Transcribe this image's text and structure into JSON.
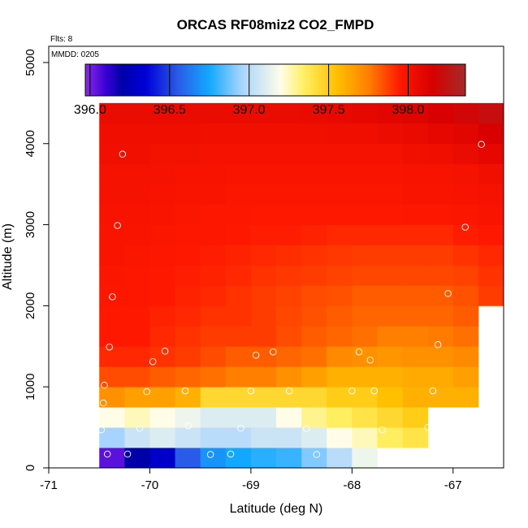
{
  "chart_data": {
    "type": "heatmap",
    "title": "ORCAS RF08miz2 CO2_FMPD",
    "xlabel": "Latitude (deg N)",
    "ylabel": "Altitude (m)",
    "flights_label": "Flts: 8",
    "date_label": "MMDD: 0205",
    "xlim": [
      -71,
      -66.5
    ],
    "ylim": [
      0,
      5200
    ],
    "x_ticks": [
      -71,
      -70,
      -69,
      -68,
      -67
    ],
    "x_tick_labels": [
      "-71",
      "-70",
      "-69",
      "-68",
      "-67"
    ],
    "y_ticks": [
      0,
      1000,
      2000,
      3000,
      4000,
      5000
    ],
    "y_tick_labels": [
      "0",
      "1000",
      "2000",
      "3000",
      "4000",
      "5000"
    ],
    "colorbar": {
      "min": 395.97,
      "max": 398.36,
      "ticks": [
        396.0,
        396.5,
        397.0,
        397.5,
        398.0
      ],
      "tick_labels": [
        "396.0",
        "396.5",
        "397.0",
        "397.5",
        "398.0"
      ],
      "stops": [
        {
          "v": 395.97,
          "c": "#8a2be2"
        },
        {
          "v": 396.1,
          "c": "#3a00d6"
        },
        {
          "v": 396.2,
          "c": "#0000a8"
        },
        {
          "v": 396.35,
          "c": "#0000d8"
        },
        {
          "v": 396.55,
          "c": "#2a5ae8"
        },
        {
          "v": 396.75,
          "c": "#12a8ff"
        },
        {
          "v": 396.95,
          "c": "#a6d4ff"
        },
        {
          "v": 397.2,
          "c": "#fffde8"
        },
        {
          "v": 397.35,
          "c": "#ffee60"
        },
        {
          "v": 397.55,
          "c": "#ffc000"
        },
        {
          "v": 397.75,
          "c": "#ff8000"
        },
        {
          "v": 397.95,
          "c": "#ff1800"
        },
        {
          "v": 398.15,
          "c": "#d80000"
        },
        {
          "v": 398.36,
          "c": "#a52a2a"
        }
      ]
    },
    "grid": {
      "lat_start": -70.5,
      "lat_step": 0.25,
      "alt_start": 0,
      "alt_step": 250,
      "rows": [
        [
          396.05,
          396.2,
          396.3,
          396.55,
          396.7,
          396.75,
          396.78,
          396.8,
          396.9,
          397.0,
          397.15,
          null,
          null,
          null,
          null,
          null,
          null,
          null
        ],
        [
          396.95,
          397.05,
          397.1,
          397.05,
          397.0,
          397.0,
          397.05,
          397.05,
          397.1,
          397.2,
          397.25,
          397.35,
          397.4,
          null,
          null,
          null,
          null,
          null
        ],
        [
          397.2,
          397.25,
          397.2,
          397.15,
          397.1,
          397.1,
          397.1,
          397.2,
          397.3,
          397.35,
          397.4,
          397.45,
          397.5,
          null,
          null,
          null,
          null,
          null
        ],
        [
          397.7,
          397.65,
          397.65,
          397.6,
          397.45,
          397.45,
          397.45,
          397.45,
          397.45,
          397.5,
          397.5,
          397.55,
          397.6,
          397.6,
          397.6,
          null,
          null,
          null
        ],
        [
          397.85,
          397.85,
          397.82,
          397.8,
          397.78,
          397.75,
          397.75,
          397.7,
          397.65,
          397.6,
          397.6,
          397.6,
          397.62,
          397.62,
          397.65,
          null,
          null,
          null
        ],
        [
          397.92,
          397.92,
          397.9,
          397.88,
          397.85,
          397.82,
          397.82,
          397.8,
          397.78,
          397.72,
          397.7,
          397.68,
          397.7,
          397.7,
          397.72,
          null,
          null,
          null
        ],
        [
          397.95,
          397.95,
          397.92,
          397.9,
          397.88,
          397.88,
          397.88,
          397.85,
          397.82,
          397.8,
          397.78,
          397.75,
          397.75,
          397.76,
          397.78,
          null,
          null,
          null
        ],
        [
          397.95,
          397.95,
          397.93,
          397.92,
          397.9,
          397.9,
          397.88,
          397.86,
          397.84,
          397.82,
          397.8,
          397.8,
          397.8,
          397.8,
          397.82,
          null,
          null,
          null
        ],
        [
          397.96,
          397.96,
          397.95,
          397.93,
          397.92,
          397.9,
          397.88,
          397.87,
          397.85,
          397.84,
          397.82,
          397.82,
          397.82,
          397.82,
          397.84,
          397.88,
          null,
          null
        ],
        [
          397.97,
          397.96,
          397.95,
          397.94,
          397.93,
          397.92,
          397.9,
          397.89,
          397.88,
          397.87,
          397.86,
          397.86,
          397.86,
          397.86,
          397.87,
          397.9,
          null,
          null
        ],
        [
          397.98,
          397.97,
          397.96,
          397.95,
          397.94,
          397.93,
          397.92,
          397.91,
          397.9,
          397.89,
          397.88,
          397.88,
          397.88,
          397.88,
          397.9,
          397.92,
          null,
          null
        ],
        [
          397.98,
          397.98,
          397.97,
          397.96,
          397.96,
          397.95,
          397.94,
          397.94,
          397.93,
          397.92,
          397.92,
          397.92,
          397.92,
          397.92,
          397.94,
          397.95,
          null,
          null
        ],
        [
          397.99,
          397.99,
          397.98,
          397.97,
          397.96,
          397.96,
          397.95,
          397.95,
          397.95,
          397.95,
          397.95,
          397.95,
          397.96,
          397.96,
          397.97,
          397.98,
          397.98,
          null
        ],
        [
          398.0,
          398.0,
          397.99,
          397.98,
          397.98,
          397.97,
          397.97,
          397.97,
          397.97,
          397.97,
          397.97,
          397.97,
          397.98,
          397.98,
          397.99,
          398.0,
          398.0,
          null
        ],
        [
          398.0,
          398.0,
          398.0,
          397.99,
          397.99,
          397.98,
          397.98,
          397.98,
          397.98,
          397.98,
          397.98,
          397.98,
          397.99,
          397.99,
          398.0,
          398.02,
          398.04,
          null
        ],
        [
          398.02,
          398.02,
          398.01,
          398.01,
          398.0,
          398.0,
          398.0,
          398.0,
          398.0,
          398.0,
          398.0,
          398.0,
          398.02,
          398.03,
          398.05,
          398.08,
          398.1,
          null
        ],
        [
          398.03,
          398.03,
          398.03,
          398.03,
          398.02,
          398.02,
          398.02,
          398.02,
          398.02,
          398.03,
          398.03,
          398.04,
          398.06,
          398.08,
          398.1,
          398.15,
          398.18,
          null
        ],
        [
          398.05,
          398.05,
          398.05,
          398.05,
          398.05,
          398.05,
          398.05,
          398.05,
          398.06,
          398.07,
          398.08,
          398.1,
          398.12,
          398.15,
          398.18,
          398.22,
          398.25,
          398.34
        ]
      ]
    },
    "points": [
      [
        -70.42,
        170
      ],
      [
        -70.22,
        170
      ],
      [
        -69.4,
        165
      ],
      [
        -69.2,
        170
      ],
      [
        -68.35,
        165
      ],
      [
        -67.5,
        170
      ],
      [
        -70.48,
        470
      ],
      [
        -70.1,
        490
      ],
      [
        -69.62,
        520
      ],
      [
        -69.1,
        490
      ],
      [
        -68.45,
        485
      ],
      [
        -67.7,
        470
      ],
      [
        -67.25,
        500
      ],
      [
        -70.46,
        800
      ],
      [
        -70.45,
        1020
      ],
      [
        -70.03,
        940
      ],
      [
        -69.65,
        950
      ],
      [
        -69.0,
        950
      ],
      [
        -68.62,
        950
      ],
      [
        -68.0,
        950
      ],
      [
        -67.78,
        950
      ],
      [
        -67.2,
        950
      ],
      [
        -70.4,
        1490
      ],
      [
        -69.97,
        1310
      ],
      [
        -69.85,
        1440
      ],
      [
        -68.95,
        1390
      ],
      [
        -68.78,
        1430
      ],
      [
        -67.93,
        1430
      ],
      [
        -67.82,
        1330
      ],
      [
        -67.15,
        1520
      ],
      [
        -70.37,
        2110
      ],
      [
        -67.05,
        2150
      ],
      [
        -70.32,
        2990
      ],
      [
        -66.88,
        2970
      ],
      [
        -70.27,
        3870
      ],
      [
        -66.72,
        3990
      ]
    ]
  }
}
